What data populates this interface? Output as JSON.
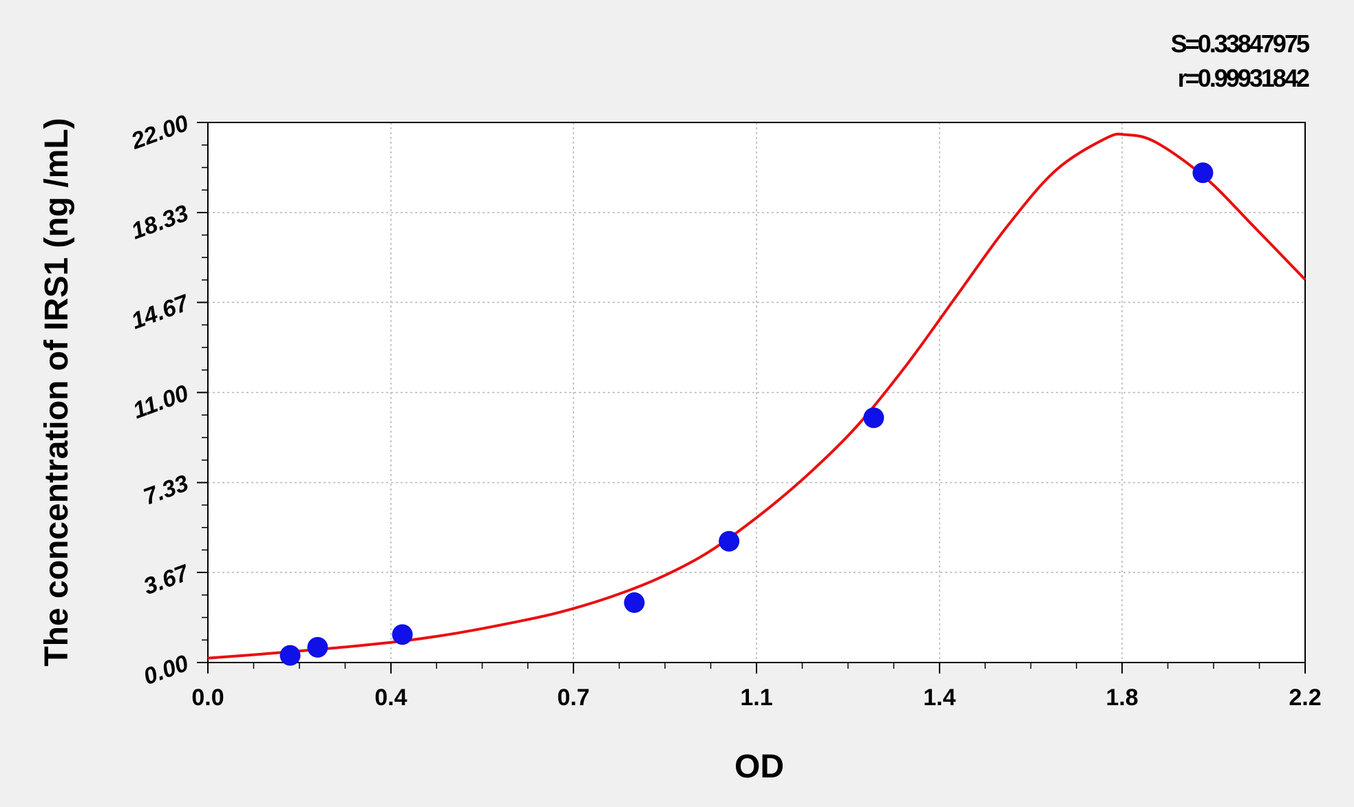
{
  "chart_data": {
    "type": "scatter",
    "title": "",
    "stats": [
      "S=0.33847975",
      "r=0.99931842"
    ],
    "xlabel": "OD",
    "ylabel": "The concentration of IRS1 (ng /mL)",
    "x_ticks": [
      {
        "value": 0.0,
        "label": "0.0"
      },
      {
        "value": 0.367,
        "label": "0.4"
      },
      {
        "value": 0.733,
        "label": "0.7"
      },
      {
        "value": 1.1,
        "label": "1.1"
      },
      {
        "value": 1.467,
        "label": "1.4"
      },
      {
        "value": 1.833,
        "label": "1.8"
      },
      {
        "value": 2.2,
        "label": "2.2"
      }
    ],
    "y_ticks": [
      {
        "value": 0.0,
        "label": "0.00"
      },
      {
        "value": 3.67,
        "label": "3.67"
      },
      {
        "value": 7.33,
        "label": "7.33"
      },
      {
        "value": 11.0,
        "label": "11.00"
      },
      {
        "value": 14.67,
        "label": "14.67"
      },
      {
        "value": 18.33,
        "label": "18.33"
      },
      {
        "value": 22.0,
        "label": "22.00"
      }
    ],
    "xlim": [
      0,
      2.2
    ],
    "ylim": [
      0,
      22
    ],
    "grid": true,
    "series": [
      {
        "kind": "points",
        "color": "#1010e8",
        "points": [
          {
            "x": 0.165,
            "y": 0.29
          },
          {
            "x": 0.22,
            "y": 0.62
          },
          {
            "x": 0.39,
            "y": 1.14
          },
          {
            "x": 0.855,
            "y": 2.44
          },
          {
            "x": 1.045,
            "y": 4.94
          },
          {
            "x": 1.335,
            "y": 9.97
          },
          {
            "x": 1.995,
            "y": 19.95
          }
        ]
      },
      {
        "kind": "fit-curve",
        "color": "#e81010",
        "points": [
          {
            "x": 0.0,
            "y": 0.18
          },
          {
            "x": 0.1,
            "y": 0.33
          },
          {
            "x": 0.2,
            "y": 0.5
          },
          {
            "x": 0.3,
            "y": 0.68
          },
          {
            "x": 0.4,
            "y": 0.9
          },
          {
            "x": 0.5,
            "y": 1.2
          },
          {
            "x": 0.6,
            "y": 1.58
          },
          {
            "x": 0.7,
            "y": 2.02
          },
          {
            "x": 0.8,
            "y": 2.62
          },
          {
            "x": 0.9,
            "y": 3.4
          },
          {
            "x": 1.0,
            "y": 4.45
          },
          {
            "x": 1.1,
            "y": 5.9
          },
          {
            "x": 1.2,
            "y": 7.6
          },
          {
            "x": 1.3,
            "y": 9.6
          },
          {
            "x": 1.4,
            "y": 12.1
          },
          {
            "x": 1.5,
            "y": 14.9
          },
          {
            "x": 1.6,
            "y": 17.7
          },
          {
            "x": 1.7,
            "y": 20.05
          },
          {
            "x": 1.8,
            "y": 21.35
          },
          {
            "x": 1.84,
            "y": 21.5
          },
          {
            "x": 1.9,
            "y": 21.2
          },
          {
            "x": 2.0,
            "y": 19.75
          },
          {
            "x": 2.1,
            "y": 17.7
          },
          {
            "x": 2.2,
            "y": 15.6
          }
        ]
      }
    ]
  }
}
